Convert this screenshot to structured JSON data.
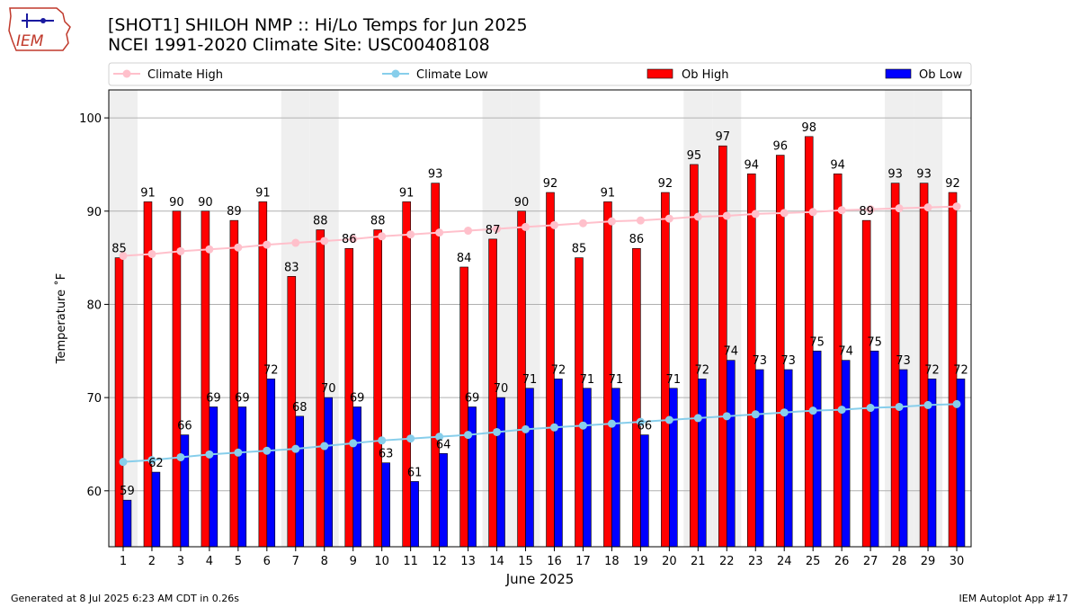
{
  "header": {
    "title_line1": "[SHOT1] SHILOH NMP :: Hi/Lo Temps for Jun 2025",
    "title_line2": "NCEI 1991-2020 Climate Site: USC00408108"
  },
  "logo": {
    "text": "IEM"
  },
  "footer": {
    "left": "Generated at 8 Jul 2025 6:23 AM CDT in 0.26s",
    "right": "IEM Autoplot App #17"
  },
  "chart_data": {
    "type": "bar",
    "xlabel": "June 2025",
    "ylabel": "Temperature ˚F",
    "ylim": [
      54,
      103
    ],
    "yticks": [
      60,
      70,
      80,
      90,
      100
    ],
    "grid": "horizontal",
    "legend_placement": "top",
    "weekend_shading_days": [
      1,
      7,
      8,
      14,
      15,
      21,
      22,
      28,
      29
    ],
    "categories": [
      "1",
      "2",
      "3",
      "4",
      "5",
      "6",
      "7",
      "8",
      "9",
      "10",
      "11",
      "12",
      "13",
      "14",
      "15",
      "16",
      "17",
      "18",
      "19",
      "20",
      "21",
      "22",
      "23",
      "24",
      "25",
      "26",
      "27",
      "28",
      "29",
      "30"
    ],
    "series": [
      {
        "name": "Climate High",
        "kind": "line",
        "color": "#ffc0cb",
        "values": [
          85.2,
          85.4,
          85.7,
          85.9,
          86.1,
          86.4,
          86.6,
          86.8,
          87.0,
          87.3,
          87.5,
          87.7,
          87.9,
          88.1,
          88.3,
          88.5,
          88.7,
          88.9,
          89.0,
          89.2,
          89.4,
          89.5,
          89.7,
          89.8,
          89.9,
          90.1,
          90.2,
          90.3,
          90.4,
          90.5
        ]
      },
      {
        "name": "Climate Low",
        "kind": "line",
        "color": "#87ceeb",
        "values": [
          63.1,
          63.3,
          63.6,
          63.9,
          64.1,
          64.3,
          64.5,
          64.8,
          65.1,
          65.4,
          65.6,
          65.8,
          66.0,
          66.3,
          66.6,
          66.8,
          67.0,
          67.2,
          67.4,
          67.6,
          67.8,
          68.0,
          68.2,
          68.4,
          68.6,
          68.7,
          68.9,
          69.0,
          69.2,
          69.3
        ]
      },
      {
        "name": "Ob High",
        "kind": "bar",
        "color": "#ff0000",
        "values": [
          85,
          91,
          90,
          90,
          89,
          91,
          83,
          88,
          86,
          88,
          91,
          93,
          84,
          87,
          90,
          92,
          85,
          91,
          86,
          92,
          95,
          97,
          94,
          96,
          98,
          94,
          89,
          93,
          93,
          92
        ]
      },
      {
        "name": "Ob Low",
        "kind": "bar",
        "color": "#0000ff",
        "values": [
          59,
          62,
          66,
          69,
          69,
          72,
          68,
          70,
          69,
          63,
          61,
          64,
          69,
          70,
          71,
          72,
          71,
          71,
          66,
          71,
          72,
          74,
          73,
          73,
          75,
          74,
          75,
          73,
          72,
          72
        ]
      }
    ]
  }
}
